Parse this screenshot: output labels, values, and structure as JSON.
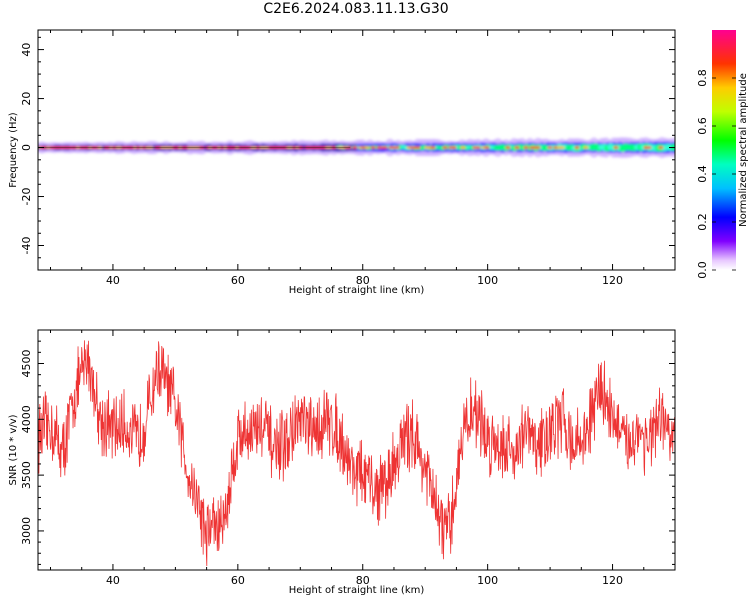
{
  "title": "C2E6.2024.083.11.13.G30",
  "chart_data": [
    {
      "type": "heatmap",
      "xlabel": "Height of straight line (km)",
      "ylabel": "Frequency (Hz)",
      "xlim": [
        28,
        130
      ],
      "ylim": [
        -50,
        48
      ],
      "x_ticks": [
        40,
        60,
        80,
        100,
        120
      ],
      "y_ticks": [
        -40,
        -20,
        0,
        20,
        40
      ],
      "colorbar": {
        "label": "Normalized spectral amplitude",
        "range": [
          0,
          1
        ],
        "ticks": [
          0.0,
          0.2,
          0.4,
          0.6,
          0.8
        ],
        "colormap": "hsv-rainbow (violet → blue → cyan → green → yellow → red → magenta)"
      },
      "band": {
        "center_frequency_hz": 0,
        "description": "narrow spectral band around 0 Hz along full height range, widening after ~110 km"
      },
      "grid": false
    },
    {
      "type": "line",
      "xlabel": "Height of straight line (km)",
      "ylabel": "SNR (10 * v/v)",
      "xlim": [
        28,
        130
      ],
      "ylim": [
        2650,
        4800
      ],
      "x_ticks": [
        40,
        60,
        80,
        100,
        120
      ],
      "y_ticks": [
        3000,
        3500,
        4000,
        4500
      ],
      "line_color": "#ee3333",
      "grid": false,
      "series": [
        {
          "x": [
            28,
            30,
            32,
            34,
            35,
            36,
            38,
            40,
            42,
            44,
            46,
            47,
            48,
            50,
            52,
            54,
            55,
            56,
            57,
            58,
            60,
            62,
            64,
            66,
            68,
            70,
            72,
            74,
            76,
            78,
            80,
            82,
            84,
            86,
            88,
            90,
            92,
            93,
            94,
            96,
            98,
            100,
            102,
            104,
            106,
            108,
            110,
            112,
            114,
            116,
            118,
            120,
            122,
            124,
            126,
            128,
            130
          ],
          "values": [
            3850,
            3950,
            3700,
            4250,
            4400,
            4550,
            4000,
            3900,
            3950,
            3800,
            4150,
            4450,
            4400,
            4100,
            3550,
            3200,
            2950,
            3100,
            3000,
            3150,
            3850,
            3900,
            3950,
            3700,
            3800,
            4000,
            3850,
            4000,
            3900,
            3600,
            3500,
            3350,
            3450,
            3750,
            3900,
            3550,
            3150,
            3000,
            3000,
            3900,
            4100,
            3800,
            3800,
            3700,
            3900,
            3750,
            3900,
            4000,
            3750,
            3900,
            4300,
            4050,
            3750,
            3900,
            3800,
            4000,
            3750
          ]
        }
      ]
    }
  ]
}
